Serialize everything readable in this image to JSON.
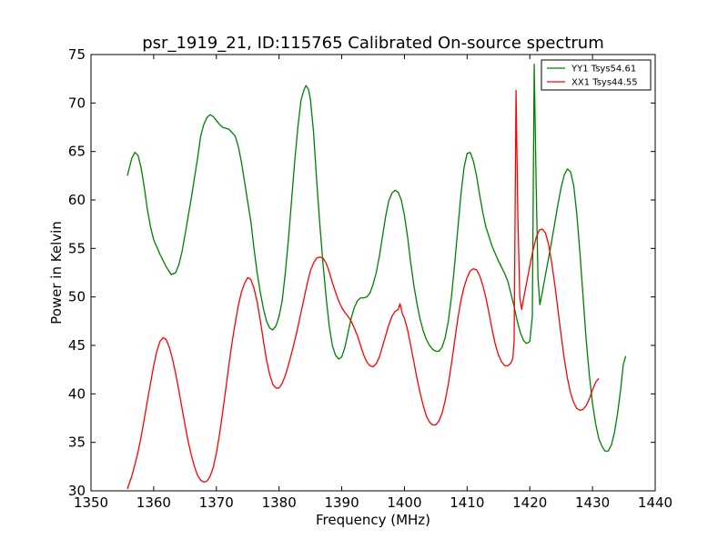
{
  "chart_data": {
    "type": "line",
    "title": "psr_1919_21, ID:115765 Calibrated On-source spectrum",
    "xlabel": "Frequency (MHz)",
    "ylabel": "Power in Kelvin",
    "xlim": [
      1350,
      1440
    ],
    "ylim": [
      30,
      75
    ],
    "xticks": [
      "1350",
      "1360",
      "1370",
      "1380",
      "1390",
      "1400",
      "1410",
      "1420",
      "1430",
      "1440"
    ],
    "yticks": [
      "30",
      "35",
      "40",
      "45",
      "50",
      "55",
      "60",
      "65",
      "70",
      "75"
    ],
    "grid": false,
    "legend_position": "top-right",
    "series": [
      {
        "name": "YY1 Tsys54.61",
        "color": "#008000",
        "points": [
          [
            1355.8,
            62.5
          ],
          [
            1356.5,
            64.3
          ],
          [
            1357.0,
            64.9
          ],
          [
            1357.5,
            64.6
          ],
          [
            1358.0,
            63.3
          ],
          [
            1358.5,
            61.3
          ],
          [
            1359.0,
            59.0
          ],
          [
            1359.5,
            57.2
          ],
          [
            1360.0,
            55.9
          ],
          [
            1361.0,
            54.4
          ],
          [
            1362.0,
            53.1
          ],
          [
            1362.8,
            52.3
          ],
          [
            1363.5,
            52.5
          ],
          [
            1364.0,
            53.3
          ],
          [
            1364.5,
            54.6
          ],
          [
            1365.0,
            56.4
          ],
          [
            1366.0,
            60.2
          ],
          [
            1367.0,
            64.3
          ],
          [
            1367.5,
            66.6
          ],
          [
            1368.0,
            67.8
          ],
          [
            1368.5,
            68.5
          ],
          [
            1369.0,
            68.8
          ],
          [
            1369.5,
            68.6
          ],
          [
            1370.0,
            68.2
          ],
          [
            1370.5,
            67.8
          ],
          [
            1371.0,
            67.5
          ],
          [
            1372.0,
            67.3
          ],
          [
            1373.0,
            66.6
          ],
          [
            1373.5,
            65.5
          ],
          [
            1374.0,
            63.9
          ],
          [
            1375.0,
            59.8
          ],
          [
            1375.5,
            57.8
          ],
          [
            1376.0,
            55.0
          ],
          [
            1376.5,
            52.5
          ],
          [
            1377.0,
            50.5
          ],
          [
            1377.5,
            48.8
          ],
          [
            1378.0,
            47.5
          ],
          [
            1378.5,
            46.8
          ],
          [
            1379.0,
            46.6
          ],
          [
            1379.5,
            47.0
          ],
          [
            1380.0,
            48.0
          ],
          [
            1380.5,
            49.6
          ],
          [
            1381.0,
            52.5
          ],
          [
            1381.5,
            56.0
          ],
          [
            1382.0,
            60.0
          ],
          [
            1382.5,
            64.0
          ],
          [
            1383.0,
            67.5
          ],
          [
            1383.5,
            70.3
          ],
          [
            1384.0,
            71.4
          ],
          [
            1384.3,
            71.8
          ],
          [
            1384.7,
            71.4
          ],
          [
            1385.0,
            70.4
          ],
          [
            1385.5,
            67.0
          ],
          [
            1386.0,
            62.0
          ],
          [
            1386.5,
            57.5
          ],
          [
            1387.0,
            53.5
          ],
          [
            1387.5,
            50.0
          ],
          [
            1388.0,
            47.0
          ],
          [
            1388.5,
            45.0
          ],
          [
            1389.0,
            44.0
          ],
          [
            1389.5,
            43.6
          ],
          [
            1390.0,
            43.8
          ],
          [
            1390.5,
            44.8
          ],
          [
            1391.0,
            46.3
          ],
          [
            1391.5,
            47.8
          ],
          [
            1392.0,
            48.9
          ],
          [
            1392.5,
            49.6
          ],
          [
            1393.0,
            49.9
          ],
          [
            1393.5,
            49.9
          ],
          [
            1394.0,
            50.0
          ],
          [
            1394.5,
            50.4
          ],
          [
            1395.0,
            51.3
          ],
          [
            1395.5,
            52.5
          ],
          [
            1396.0,
            54.2
          ],
          [
            1397.0,
            58.3
          ],
          [
            1397.5,
            59.9
          ],
          [
            1398.0,
            60.7
          ],
          [
            1398.5,
            61.0
          ],
          [
            1399.0,
            60.8
          ],
          [
            1399.5,
            60.0
          ],
          [
            1400.0,
            58.4
          ],
          [
            1400.5,
            56.2
          ],
          [
            1401.0,
            53.5
          ],
          [
            1401.5,
            51.2
          ],
          [
            1402.0,
            49.3
          ],
          [
            1402.5,
            47.7
          ],
          [
            1403.0,
            46.5
          ],
          [
            1403.5,
            45.6
          ],
          [
            1404.0,
            45.0
          ],
          [
            1404.5,
            44.6
          ],
          [
            1405.0,
            44.4
          ],
          [
            1405.5,
            44.4
          ],
          [
            1406.0,
            44.8
          ],
          [
            1406.5,
            45.8
          ],
          [
            1407.0,
            47.5
          ],
          [
            1407.5,
            50.0
          ],
          [
            1408.0,
            53.3
          ],
          [
            1408.5,
            56.9
          ],
          [
            1409.0,
            60.5
          ],
          [
            1409.5,
            63.3
          ],
          [
            1410.0,
            64.8
          ],
          [
            1410.5,
            64.9
          ],
          [
            1411.0,
            64.0
          ],
          [
            1411.5,
            62.5
          ],
          [
            1412.0,
            60.5
          ],
          [
            1412.5,
            58.7
          ],
          [
            1413.0,
            57.2
          ],
          [
            1414.0,
            55.2
          ],
          [
            1415.0,
            53.7
          ],
          [
            1416.0,
            52.4
          ],
          [
            1416.5,
            51.6
          ],
          [
            1417.0,
            50.3
          ],
          [
            1417.5,
            49.0
          ],
          [
            1418.0,
            47.5
          ],
          [
            1418.5,
            46.3
          ],
          [
            1419.0,
            45.5
          ],
          [
            1419.5,
            45.2
          ],
          [
            1420.0,
            45.4
          ],
          [
            1420.4,
            48.0
          ],
          [
            1420.7,
            74.0
          ],
          [
            1421.0,
            62.0
          ],
          [
            1421.3,
            52.0
          ],
          [
            1421.6,
            49.2
          ],
          [
            1422.0,
            50.5
          ],
          [
            1422.5,
            52.3
          ],
          [
            1423.0,
            54.0
          ],
          [
            1423.5,
            55.8
          ],
          [
            1424.0,
            57.7
          ],
          [
            1424.5,
            59.6
          ],
          [
            1425.0,
            61.3
          ],
          [
            1425.5,
            62.6
          ],
          [
            1426.0,
            63.2
          ],
          [
            1426.5,
            62.9
          ],
          [
            1427.0,
            61.5
          ],
          [
            1427.5,
            58.5
          ],
          [
            1428.0,
            54.5
          ],
          [
            1428.5,
            50.0
          ],
          [
            1429.0,
            45.5
          ],
          [
            1429.5,
            41.9
          ],
          [
            1430.0,
            39.0
          ],
          [
            1430.5,
            36.9
          ],
          [
            1431.0,
            35.4
          ],
          [
            1431.5,
            34.6
          ],
          [
            1432.0,
            34.1
          ],
          [
            1432.5,
            34.1
          ],
          [
            1433.0,
            34.7
          ],
          [
            1433.5,
            36.0
          ],
          [
            1434.0,
            38.0
          ],
          [
            1434.5,
            40.5
          ],
          [
            1434.9,
            43.0
          ],
          [
            1435.3,
            43.9
          ]
        ]
      },
      {
        "name": "XX1 Tsys44.55",
        "color": "#ff0000",
        "points": [
          [
            1355.8,
            30.2
          ],
          [
            1356.5,
            31.5
          ],
          [
            1357.0,
            32.7
          ],
          [
            1357.5,
            34.0
          ],
          [
            1358.0,
            35.6
          ],
          [
            1358.5,
            37.4
          ],
          [
            1359.0,
            39.3
          ],
          [
            1359.5,
            41.1
          ],
          [
            1360.0,
            42.9
          ],
          [
            1360.5,
            44.4
          ],
          [
            1361.0,
            45.4
          ],
          [
            1361.5,
            45.8
          ],
          [
            1362.0,
            45.6
          ],
          [
            1362.5,
            44.8
          ],
          [
            1363.0,
            43.6
          ],
          [
            1363.5,
            42.1
          ],
          [
            1364.0,
            40.4
          ],
          [
            1364.5,
            38.6
          ],
          [
            1365.0,
            36.8
          ],
          [
            1365.5,
            35.1
          ],
          [
            1366.0,
            33.7
          ],
          [
            1366.5,
            32.5
          ],
          [
            1367.0,
            31.6
          ],
          [
            1367.5,
            31.1
          ],
          [
            1368.0,
            30.9
          ],
          [
            1368.5,
            31.0
          ],
          [
            1369.0,
            31.5
          ],
          [
            1369.5,
            32.4
          ],
          [
            1370.0,
            33.9
          ],
          [
            1370.5,
            35.8
          ],
          [
            1371.0,
            38.1
          ],
          [
            1371.5,
            40.5
          ],
          [
            1372.0,
            43.0
          ],
          [
            1372.5,
            45.3
          ],
          [
            1373.0,
            47.3
          ],
          [
            1373.5,
            49.1
          ],
          [
            1374.0,
            50.5
          ],
          [
            1374.5,
            51.4
          ],
          [
            1375.0,
            52.0
          ],
          [
            1375.5,
            51.8
          ],
          [
            1376.0,
            50.9
          ],
          [
            1376.5,
            49.5
          ],
          [
            1377.0,
            47.6
          ],
          [
            1377.5,
            45.5
          ],
          [
            1378.0,
            43.5
          ],
          [
            1378.5,
            42.0
          ],
          [
            1379.0,
            41.0
          ],
          [
            1379.5,
            40.6
          ],
          [
            1380.0,
            40.6
          ],
          [
            1380.5,
            41.1
          ],
          [
            1381.0,
            41.9
          ],
          [
            1381.5,
            43.0
          ],
          [
            1382.0,
            44.2
          ],
          [
            1382.5,
            45.5
          ],
          [
            1383.0,
            46.9
          ],
          [
            1383.5,
            48.4
          ],
          [
            1384.0,
            49.9
          ],
          [
            1384.5,
            51.4
          ],
          [
            1385.0,
            52.7
          ],
          [
            1385.5,
            53.5
          ],
          [
            1386.0,
            54.0
          ],
          [
            1386.5,
            54.1
          ],
          [
            1387.0,
            54.0
          ],
          [
            1387.5,
            53.5
          ],
          [
            1388.0,
            52.6
          ],
          [
            1388.5,
            51.5
          ],
          [
            1389.0,
            50.5
          ],
          [
            1389.5,
            49.6
          ],
          [
            1390.0,
            48.9
          ],
          [
            1390.5,
            48.4
          ],
          [
            1391.0,
            48.0
          ],
          [
            1391.5,
            47.5
          ],
          [
            1392.0,
            46.8
          ],
          [
            1392.5,
            46.0
          ],
          [
            1393.0,
            45.0
          ],
          [
            1393.5,
            44.0
          ],
          [
            1394.0,
            43.3
          ],
          [
            1394.5,
            42.9
          ],
          [
            1395.0,
            42.8
          ],
          [
            1395.5,
            43.1
          ],
          [
            1396.0,
            43.8
          ],
          [
            1396.5,
            44.9
          ],
          [
            1397.0,
            46.0
          ],
          [
            1397.5,
            47.1
          ],
          [
            1398.0,
            48.0
          ],
          [
            1398.5,
            48.5
          ],
          [
            1399.0,
            48.7
          ],
          [
            1399.3,
            49.3
          ],
          [
            1399.7,
            48.2
          ],
          [
            1400.0,
            47.8
          ],
          [
            1400.5,
            46.6
          ],
          [
            1401.0,
            45.0
          ],
          [
            1401.5,
            43.3
          ],
          [
            1402.0,
            41.6
          ],
          [
            1402.5,
            40.1
          ],
          [
            1403.0,
            38.8
          ],
          [
            1403.5,
            37.7
          ],
          [
            1404.0,
            37.1
          ],
          [
            1404.5,
            36.8
          ],
          [
            1405.0,
            36.8
          ],
          [
            1405.5,
            37.2
          ],
          [
            1406.0,
            38.0
          ],
          [
            1406.5,
            39.3
          ],
          [
            1407.0,
            41.0
          ],
          [
            1407.5,
            43.1
          ],
          [
            1408.0,
            45.4
          ],
          [
            1408.5,
            47.7
          ],
          [
            1409.0,
            49.6
          ],
          [
            1409.5,
            51.0
          ],
          [
            1410.0,
            52.0
          ],
          [
            1410.5,
            52.7
          ],
          [
            1411.0,
            52.9
          ],
          [
            1411.5,
            52.8
          ],
          [
            1412.0,
            52.2
          ],
          [
            1412.5,
            51.2
          ],
          [
            1413.0,
            49.9
          ],
          [
            1413.5,
            48.3
          ],
          [
            1414.0,
            46.6
          ],
          [
            1414.5,
            45.1
          ],
          [
            1415.0,
            44.0
          ],
          [
            1415.5,
            43.3
          ],
          [
            1416.0,
            42.9
          ],
          [
            1416.5,
            42.9
          ],
          [
            1417.0,
            43.2
          ],
          [
            1417.3,
            43.7
          ],
          [
            1417.5,
            45.5
          ],
          [
            1417.8,
            71.3
          ],
          [
            1418.1,
            58.0
          ],
          [
            1418.4,
            50.0
          ],
          [
            1418.7,
            48.7
          ],
          [
            1419.0,
            49.8
          ],
          [
            1419.5,
            51.5
          ],
          [
            1420.0,
            53.2
          ],
          [
            1420.5,
            54.8
          ],
          [
            1421.0,
            56.1
          ],
          [
            1421.5,
            56.9
          ],
          [
            1422.0,
            57.0
          ],
          [
            1422.5,
            56.6
          ],
          [
            1423.0,
            55.4
          ],
          [
            1423.5,
            53.5
          ],
          [
            1424.0,
            51.2
          ],
          [
            1424.5,
            48.6
          ],
          [
            1425.0,
            46.0
          ],
          [
            1425.5,
            43.6
          ],
          [
            1426.0,
            41.6
          ],
          [
            1426.5,
            40.1
          ],
          [
            1427.0,
            39.1
          ],
          [
            1427.5,
            38.5
          ],
          [
            1428.0,
            38.3
          ],
          [
            1428.5,
            38.4
          ],
          [
            1429.0,
            38.8
          ],
          [
            1429.5,
            39.5
          ],
          [
            1430.0,
            40.4
          ],
          [
            1430.5,
            41.2
          ],
          [
            1431.0,
            41.6
          ]
        ]
      }
    ]
  }
}
